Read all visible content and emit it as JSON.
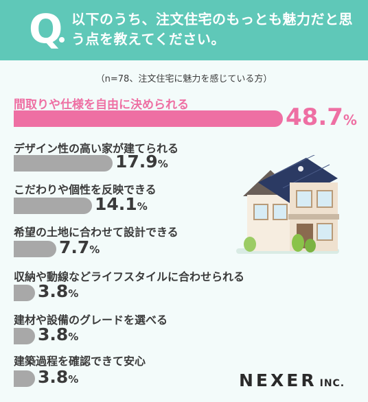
{
  "header": {
    "q_letter": "Q",
    "question": "以下のうち、注文住宅のもっとも魅力だと思う点を教えてください。"
  },
  "note": "（n=78、注文住宅に魅力を感じている方）",
  "chart_data": {
    "type": "bar",
    "orientation": "horizontal",
    "categories": [
      "間取りや仕様を自由に決められる",
      "デザイン性の高い家が建てられる",
      "こだわりや個性を反映できる",
      "希望の土地に合わせて設計できる",
      "収納や動線などライフスタイルに合わせられる",
      "建材や設備のグレードを選べる",
      "建築過程を確認できて安心"
    ],
    "values": [
      48.7,
      17.9,
      14.1,
      7.7,
      3.8,
      3.8,
      3.8
    ],
    "unit": "%",
    "highlight_color": "#ee6fa3",
    "bar_color": "#a8a8a8"
  },
  "logo": {
    "main": "NEXER",
    "sub": "INC."
  }
}
